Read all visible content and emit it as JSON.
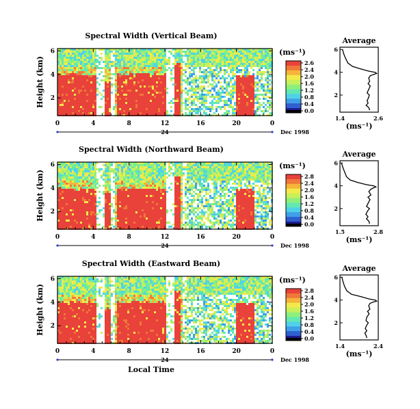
{
  "chart_data": [
    {
      "type": "heatmap",
      "title": "Spectral Width (Vertical Beam)",
      "ylabel": "Height (km)",
      "xlabel": "",
      "x_ticks": [
        "0",
        "4",
        "8",
        "12",
        "16",
        "20",
        "0"
      ],
      "y_ticks": [
        "2",
        "4",
        "6"
      ],
      "date_label": "24",
      "month_label": "Dec 1998",
      "colorbar_unit": "(ms⁻¹)",
      "colorbar_ticks": [
        "2.6",
        "2.4",
        "2.0",
        "1.6",
        "1.2",
        "0.8",
        "0.4",
        "0.0"
      ],
      "xlim": [
        0,
        24
      ],
      "ylim": [
        0.5,
        6.2
      ],
      "segments": [
        {
          "x0": 0,
          "x1": 2.2,
          "h": 4.1
        },
        {
          "x0": 2.2,
          "x1": 4.2,
          "h": 4.0
        },
        {
          "x0": 5.2,
          "x1": 5.8,
          "h": 3.6
        },
        {
          "x0": 6.5,
          "x1": 12.0,
          "h": 4.1
        },
        {
          "x0": 13.0,
          "x1": 13.7,
          "h": 5.0
        },
        {
          "x0": 19.8,
          "x1": 21.8,
          "h": 4.0
        }
      ],
      "profile": {
        "title": "Average",
        "xlabel": "(ms⁻¹)",
        "x_ticks": [
          "1.4",
          "2.6"
        ],
        "xlim": [
          1.4,
          2.6
        ],
        "y_ticks": [
          "2",
          "4",
          "6"
        ],
        "ylim": [
          0.5,
          6.2
        ],
        "heights": [
          6.0,
          5.6,
          5.2,
          4.8,
          4.5,
          4.3,
          4.1,
          4.0,
          3.9,
          3.8,
          3.7,
          3.5,
          3.2,
          3.0,
          2.8,
          2.5,
          2.2,
          2.0,
          1.8,
          1.5,
          1.3,
          1.1,
          0.9,
          0.7
        ],
        "values": [
          1.48,
          1.52,
          1.58,
          1.65,
          1.8,
          2.05,
          2.3,
          2.5,
          2.55,
          2.45,
          2.35,
          2.3,
          2.33,
          2.28,
          2.35,
          2.3,
          2.25,
          2.32,
          2.3,
          2.25,
          2.28,
          2.22,
          2.3,
          2.33
        ]
      }
    },
    {
      "type": "heatmap",
      "title": "Spectral Width (Northward Beam)",
      "ylabel": "Height (km)",
      "xlabel": "",
      "x_ticks": [
        "0",
        "4",
        "8",
        "12",
        "16",
        "20",
        "0"
      ],
      "y_ticks": [
        "2",
        "4",
        "6"
      ],
      "date_label": "24",
      "month_label": "Dec 1998",
      "colorbar_unit": "(ms⁻¹)",
      "colorbar_ticks": [
        "2.8",
        "2.4",
        "2.0",
        "1.6",
        "1.2",
        "0.8",
        "0.4",
        "0.0"
      ],
      "xlim": [
        0,
        24
      ],
      "ylim": [
        0.5,
        6.2
      ],
      "segments": [
        {
          "x0": 0,
          "x1": 2.2,
          "h": 4.0
        },
        {
          "x0": 2.2,
          "x1": 4.2,
          "h": 4.0
        },
        {
          "x0": 5.2,
          "x1": 5.8,
          "h": 3.6
        },
        {
          "x0": 6.5,
          "x1": 12.0,
          "h": 4.0
        },
        {
          "x0": 13.0,
          "x1": 13.7,
          "h": 5.0
        },
        {
          "x0": 19.8,
          "x1": 21.8,
          "h": 4.0
        }
      ],
      "profile": {
        "title": "Average",
        "xlabel": "(ms⁻¹)",
        "x_ticks": [
          "1.5",
          "2.8"
        ],
        "xlim": [
          1.5,
          2.8
        ],
        "y_ticks": [
          "2",
          "4",
          "6"
        ],
        "ylim": [
          0.5,
          6.2
        ],
        "heights": [
          6.0,
          5.6,
          5.2,
          4.8,
          4.5,
          4.3,
          4.1,
          4.0,
          3.9,
          3.8,
          3.7,
          3.5,
          3.2,
          3.0,
          2.8,
          2.5,
          2.2,
          2.0,
          1.8,
          1.5,
          1.3,
          1.1,
          0.9,
          0.7
        ],
        "values": [
          1.55,
          1.6,
          1.66,
          1.72,
          1.85,
          2.1,
          2.4,
          2.65,
          2.72,
          2.62,
          2.55,
          2.48,
          2.55,
          2.45,
          2.52,
          2.46,
          2.4,
          2.5,
          2.44,
          2.38,
          2.45,
          2.4,
          2.48,
          2.5
        ]
      }
    },
    {
      "type": "heatmap",
      "title": "Spectral Width (Eastward Beam)",
      "ylabel": "Height (km)",
      "xlabel": "Local Time",
      "x_ticks": [
        "0",
        "4",
        "8",
        "12",
        "16",
        "20",
        "0"
      ],
      "y_ticks": [
        "2",
        "4",
        "6"
      ],
      "date_label": "24",
      "month_label": "Dec 1998",
      "colorbar_unit": "(ms⁻¹)",
      "colorbar_ticks": [
        "2.8",
        "2.4",
        "2.0",
        "1.6",
        "1.2",
        "0.8",
        "0.4",
        "0.0"
      ],
      "xlim": [
        0,
        24
      ],
      "ylim": [
        0.5,
        6.2
      ],
      "segments": [
        {
          "x0": 0,
          "x1": 2.2,
          "h": 4.1
        },
        {
          "x0": 2.2,
          "x1": 4.2,
          "h": 4.1
        },
        {
          "x0": 5.2,
          "x1": 5.8,
          "h": 3.6
        },
        {
          "x0": 6.5,
          "x1": 12.0,
          "h": 4.1
        },
        {
          "x0": 13.0,
          "x1": 13.7,
          "h": 5.0
        },
        {
          "x0": 19.8,
          "x1": 21.8,
          "h": 4.0
        }
      ],
      "profile": {
        "title": "Average",
        "xlabel": "(ms⁻¹)",
        "x_ticks": [
          "1.4",
          "2.4"
        ],
        "xlim": [
          1.4,
          2.4
        ],
        "y_ticks": [
          "2",
          "4",
          "6"
        ],
        "ylim": [
          0.5,
          6.2
        ],
        "heights": [
          6.0,
          5.6,
          5.2,
          4.8,
          4.5,
          4.3,
          4.1,
          4.0,
          3.9,
          3.8,
          3.7,
          3.5,
          3.2,
          3.0,
          2.8,
          2.5,
          2.2,
          2.0,
          1.8,
          1.5,
          1.3,
          1.1,
          0.9,
          0.7
        ],
        "values": [
          1.45,
          1.48,
          1.52,
          1.58,
          1.7,
          1.95,
          2.15,
          2.32,
          2.36,
          2.25,
          2.18,
          2.15,
          2.18,
          2.12,
          2.16,
          2.1,
          2.08,
          2.14,
          2.1,
          2.06,
          2.1,
          2.05,
          2.08,
          2.1
        ]
      }
    }
  ]
}
